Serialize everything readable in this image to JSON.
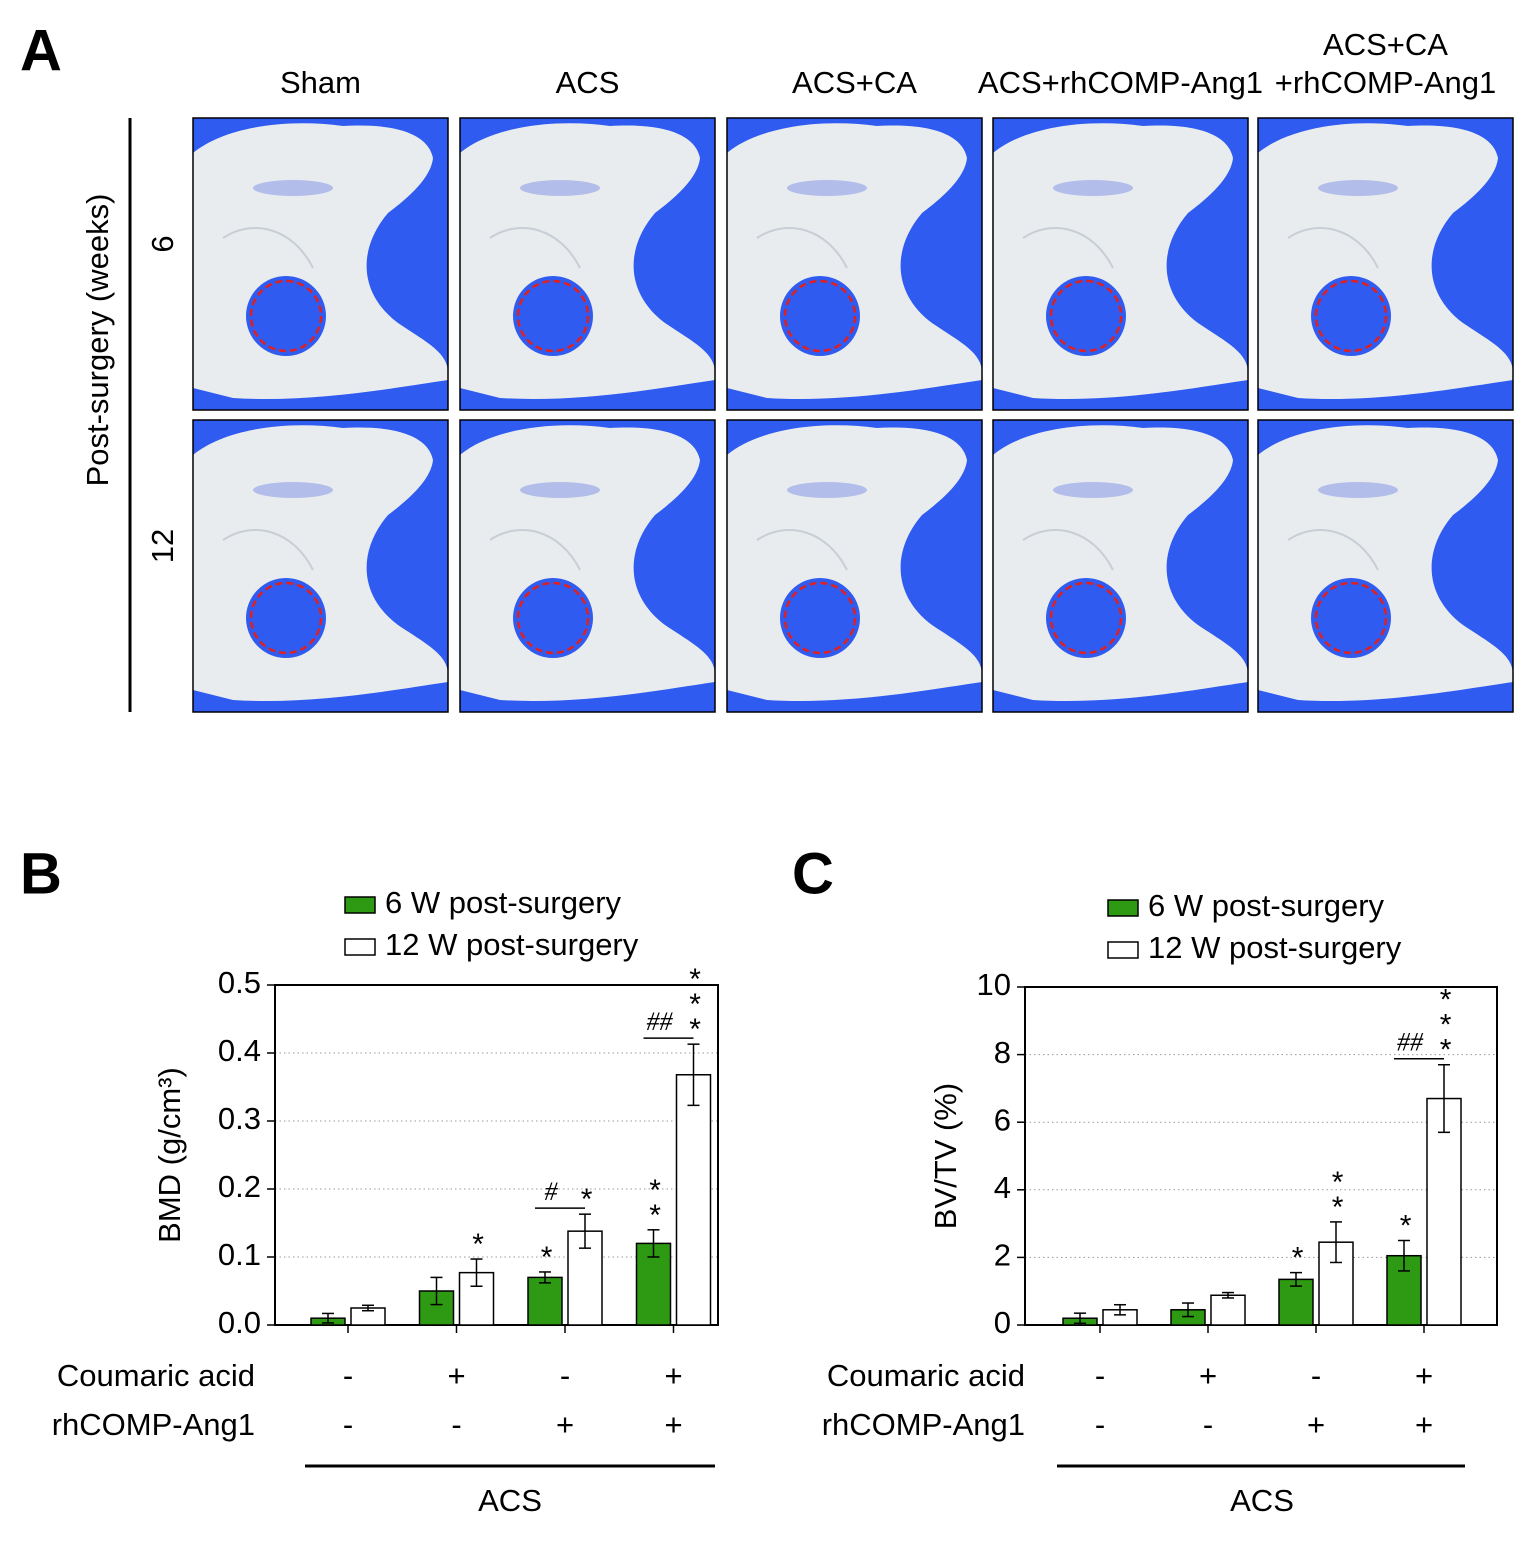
{
  "panel_labels": [
    "A",
    "B",
    "C"
  ],
  "panel_a": {
    "column_headers": [
      [
        "Sham"
      ],
      [
        "ACS"
      ],
      [
        "ACS+CA"
      ],
      [
        "ACS+rhCOMP-Ang1"
      ],
      [
        "ACS+CA",
        "+rhCOMP-Ang1"
      ]
    ],
    "row_axis_label": "Post-surgery (weeks)",
    "rows": [
      "6",
      "12"
    ]
  },
  "chart_data": [
    {
      "type": "bar",
      "y_label": "BMD (g/cm³)",
      "ylim": [
        0,
        0.5
      ],
      "yticks": [
        {
          "value": 0,
          "label": "0.0"
        },
        0.1,
        0.2,
        0.3,
        0.4,
        0.5
      ],
      "grid": true,
      "series": [
        {
          "name": "6 W post-surgery",
          "color": "#2e9a13",
          "values": [
            0.01,
            0.05,
            0.07,
            0.12
          ],
          "errors": [
            0.007,
            0.02,
            0.008,
            0.02
          ],
          "annotations": [
            null,
            null,
            "*",
            "**"
          ]
        },
        {
          "name": "12 W post-surgery",
          "color": "#ffffff",
          "values": [
            0.025,
            0.077,
            0.138,
            0.368
          ],
          "errors": [
            0.004,
            0.02,
            0.025,
            0.045
          ],
          "annotations": [
            null,
            "*",
            "*",
            "***"
          ]
        }
      ],
      "hash_labels": [
        null,
        null,
        "#",
        "##"
      ],
      "conditions": [
        {
          "name": "Coumaric acid",
          "values": [
            "-",
            "+",
            "-",
            "+"
          ]
        },
        {
          "name": "rhCOMP-Ang1",
          "values": [
            "-",
            "-",
            "+",
            "+"
          ]
        }
      ],
      "group_label": "ACS"
    },
    {
      "type": "bar",
      "y_label": "BV/TV (%)",
      "ylim": [
        0,
        10
      ],
      "yticks": [
        0,
        2,
        4,
        6,
        8,
        10
      ],
      "grid": true,
      "series": [
        {
          "name": "6 W post-surgery",
          "color": "#2e9a13",
          "values": [
            0.2,
            0.45,
            1.35,
            2.05
          ],
          "errors": [
            0.15,
            0.2,
            0.2,
            0.45
          ],
          "annotations": [
            null,
            null,
            "*",
            "*"
          ]
        },
        {
          "name": "12 W post-surgery",
          "color": "#ffffff",
          "values": [
            0.45,
            0.88,
            2.45,
            6.7
          ],
          "errors": [
            0.15,
            0.08,
            0.6,
            1.0
          ],
          "annotations": [
            null,
            null,
            "**",
            "***"
          ]
        }
      ],
      "hash_labels": [
        null,
        null,
        null,
        "##"
      ],
      "conditions": [
        {
          "name": "Coumaric acid",
          "values": [
            "-",
            "+",
            "-",
            "+"
          ]
        },
        {
          "name": "rhCOMP-Ang1",
          "values": [
            "-",
            "-",
            "+",
            "+"
          ]
        }
      ],
      "group_label": "ACS"
    }
  ]
}
